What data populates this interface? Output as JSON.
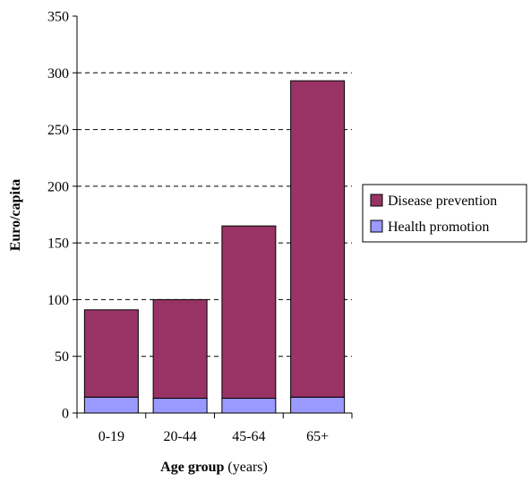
{
  "chart_data": {
    "type": "bar",
    "stacked": true,
    "categories": [
      "0-19",
      "20-44",
      "45-64",
      "65+"
    ],
    "series": [
      {
        "name": "Health promotion",
        "values": [
          14,
          13,
          13,
          14
        ],
        "color": "#9999ff"
      },
      {
        "name": "Disease prevention",
        "values": [
          77,
          87,
          152,
          279
        ],
        "color": "#993366"
      }
    ],
    "ylim": [
      0,
      350
    ],
    "yticks": [
      0,
      50,
      100,
      150,
      200,
      250,
      300,
      350
    ],
    "ylabel": "Euro/capita",
    "xlabel_bold": "Age group",
    "xlabel_normal": " (years)",
    "grid": "dashed horizontal",
    "legend": {
      "position": "right",
      "order": [
        "Disease prevention",
        "Health promotion"
      ]
    }
  }
}
